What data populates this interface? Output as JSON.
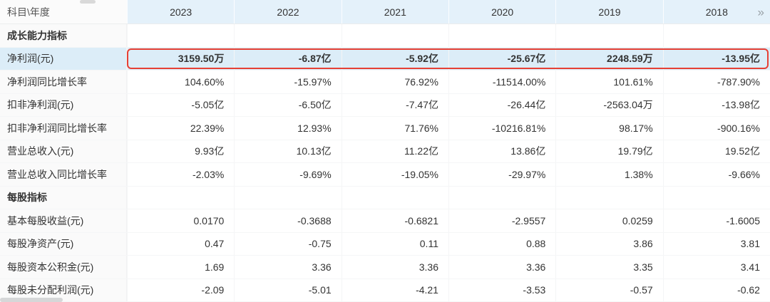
{
  "colors": {
    "header_bg": "#e4f1fa",
    "highlight_row_bg": "#dcedf8",
    "highlight_border": "#e64035"
  },
  "table": {
    "corner_header": "科目\\年度",
    "years": [
      "2023",
      "2022",
      "2021",
      "2020",
      "2019",
      "2018"
    ],
    "more_icon": "»",
    "rows": [
      {
        "type": "section",
        "label": "成长能力指标"
      },
      {
        "type": "data",
        "highlighted": true,
        "label": "净利润(元)",
        "values": [
          "3159.50万",
          "-6.87亿",
          "-5.92亿",
          "-25.67亿",
          "2248.59万",
          "-13.95亿"
        ]
      },
      {
        "type": "data",
        "label": "净利润同比增长率",
        "values": [
          "104.60%",
          "-15.97%",
          "76.92%",
          "-11514.00%",
          "101.61%",
          "-787.90%"
        ]
      },
      {
        "type": "data",
        "label": "扣非净利润(元)",
        "values": [
          "-5.05亿",
          "-6.50亿",
          "-7.47亿",
          "-26.44亿",
          "-2563.04万",
          "-13.98亿"
        ]
      },
      {
        "type": "data",
        "label": "扣非净利润同比增长率",
        "values": [
          "22.39%",
          "12.93%",
          "71.76%",
          "-10216.81%",
          "98.17%",
          "-900.16%"
        ]
      },
      {
        "type": "data",
        "label": "营业总收入(元)",
        "values": [
          "9.93亿",
          "10.13亿",
          "11.22亿",
          "13.86亿",
          "19.79亿",
          "19.52亿"
        ]
      },
      {
        "type": "data",
        "label": "营业总收入同比增长率",
        "values": [
          "-2.03%",
          "-9.69%",
          "-19.05%",
          "-29.97%",
          "1.38%",
          "-9.66%"
        ]
      },
      {
        "type": "section",
        "label": "每股指标"
      },
      {
        "type": "data",
        "label": "基本每股收益(元)",
        "values": [
          "0.0170",
          "-0.3688",
          "-0.6821",
          "-2.9557",
          "0.0259",
          "-1.6005"
        ]
      },
      {
        "type": "data",
        "label": "每股净资产(元)",
        "values": [
          "0.47",
          "-0.75",
          "0.11",
          "0.88",
          "3.86",
          "3.81"
        ]
      },
      {
        "type": "data",
        "label": "每股资本公积金(元)",
        "values": [
          "1.69",
          "3.36",
          "3.36",
          "3.36",
          "3.35",
          "3.41"
        ]
      },
      {
        "type": "data",
        "label": "每股未分配利润(元)",
        "values": [
          "-2.09",
          "-5.01",
          "-4.21",
          "-3.53",
          "-0.57",
          "-0.62"
        ]
      }
    ]
  }
}
